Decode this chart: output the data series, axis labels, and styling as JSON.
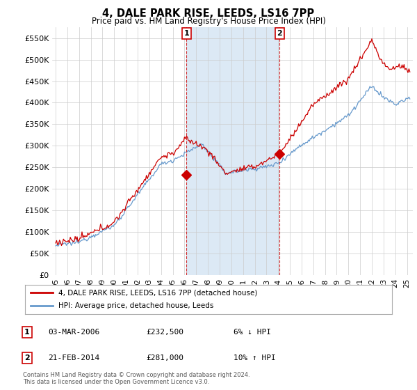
{
  "title": "4, DALE PARK RISE, LEEDS, LS16 7PP",
  "subtitle": "Price paid vs. HM Land Registry's House Price Index (HPI)",
  "plot_bg_color": "#ffffff",
  "shaded_region_color": "#dce9f5",
  "ylim": [
    0,
    575000
  ],
  "yticks": [
    0,
    50000,
    100000,
    150000,
    200000,
    250000,
    300000,
    350000,
    400000,
    450000,
    500000,
    550000
  ],
  "xlim_start": 1994.7,
  "xlim_end": 2025.5,
  "transaction1": {
    "date_num": 2006.17,
    "price": 232500,
    "label": "1"
  },
  "transaction2": {
    "date_num": 2014.13,
    "price": 281000,
    "label": "2"
  },
  "legend_entry1": "4, DALE PARK RISE, LEEDS, LS16 7PP (detached house)",
  "legend_entry2": "HPI: Average price, detached house, Leeds",
  "table_row1": [
    "1",
    "03-MAR-2006",
    "£232,500",
    "6% ↓ HPI"
  ],
  "table_row2": [
    "2",
    "21-FEB-2014",
    "£281,000",
    "10% ↑ HPI"
  ],
  "footnote": "Contains HM Land Registry data © Crown copyright and database right 2024.\nThis data is licensed under the Open Government Licence v3.0.",
  "line_color_red": "#cc0000",
  "line_color_blue": "#6699cc",
  "grid_color": "#cccccc",
  "xtick_years": [
    1995,
    1996,
    1997,
    1998,
    1999,
    2000,
    2001,
    2002,
    2003,
    2004,
    2005,
    2006,
    2007,
    2008,
    2009,
    2010,
    2011,
    2012,
    2013,
    2014,
    2015,
    2016,
    2017,
    2018,
    2019,
    2020,
    2021,
    2022,
    2023,
    2024,
    2025
  ]
}
